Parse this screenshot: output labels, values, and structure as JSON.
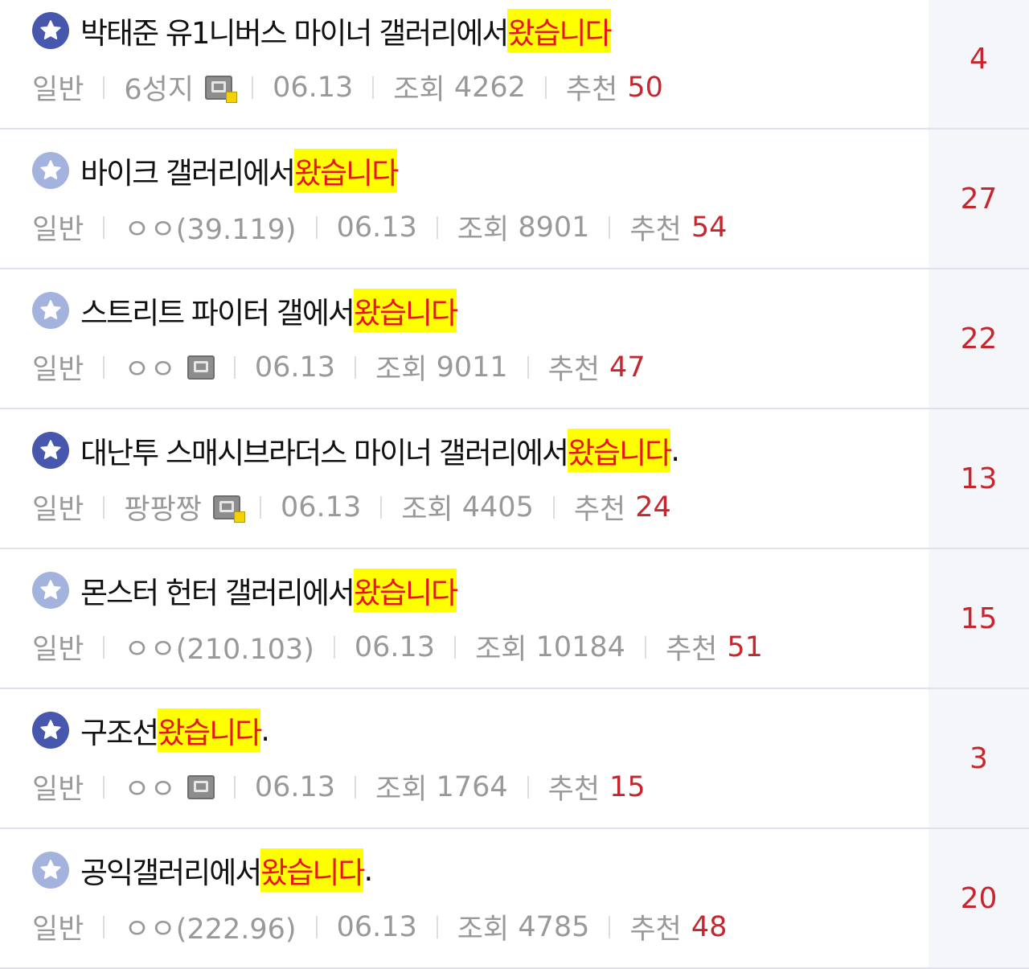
{
  "colors": {
    "accent_red": "#c8262e",
    "highlight": "#ffff00",
    "star_dark": "#4657ad",
    "star_light": "#a4b3dd"
  },
  "labels": {
    "views": "조회",
    "recommend": "추천"
  },
  "posts": [
    {
      "icon": "star-dark",
      "title": "박태준 유1니버스 마이너 갤러리에서 ",
      "highlight": "왔습니다",
      "suffix": "",
      "category": "일반",
      "author": "6성지",
      "gallercon": "fixed-nick",
      "date": "06.13",
      "views": "4262",
      "recommend": "50",
      "comments": "4"
    },
    {
      "icon": "star-light",
      "title": "바이크 갤러리에서 ",
      "highlight": "왔습니다",
      "suffix": "",
      "category": "일반",
      "author": "ㅇㅇ(39.119)",
      "gallercon": "",
      "date": "06.13",
      "views": "8901",
      "recommend": "54",
      "comments": "27"
    },
    {
      "icon": "star-light",
      "title": "스트리트 파이터 갤에서 ",
      "highlight": "왔습니다",
      "suffix": "",
      "category": "일반",
      "author": "ㅇㅇ",
      "gallercon": "semi-nick",
      "date": "06.13",
      "views": "9011",
      "recommend": "47",
      "comments": "22"
    },
    {
      "icon": "star-dark",
      "title": "대난투 스매시브라더스 마이너 갤러리에서 ",
      "highlight": "왔습니다",
      "suffix": ".",
      "category": "일반",
      "author": "팡팡짱",
      "gallercon": "fixed-nick",
      "date": "06.13",
      "views": "4405",
      "recommend": "24",
      "comments": "13"
    },
    {
      "icon": "star-light",
      "title": "몬스터 헌터 갤러리에서 ",
      "highlight": "왔습니다",
      "suffix": "",
      "category": "일반",
      "author": "ㅇㅇ(210.103)",
      "gallercon": "",
      "date": "06.13",
      "views": "10184",
      "recommend": "51",
      "comments": "15"
    },
    {
      "icon": "star-dark",
      "title": "구조선 ",
      "highlight": "왔습니다",
      "suffix": ".",
      "category": "일반",
      "author": "ㅇㅇ",
      "gallercon": "semi-nick",
      "date": "06.13",
      "views": "1764",
      "recommend": "15",
      "comments": "3"
    },
    {
      "icon": "star-light",
      "title": "공익갤러리에서 ",
      "highlight": "왔습니다",
      "suffix": ".",
      "category": "일반",
      "author": "ㅇㅇ(222.96)",
      "gallercon": "",
      "date": "06.13",
      "views": "4785",
      "recommend": "48",
      "comments": "20"
    }
  ]
}
